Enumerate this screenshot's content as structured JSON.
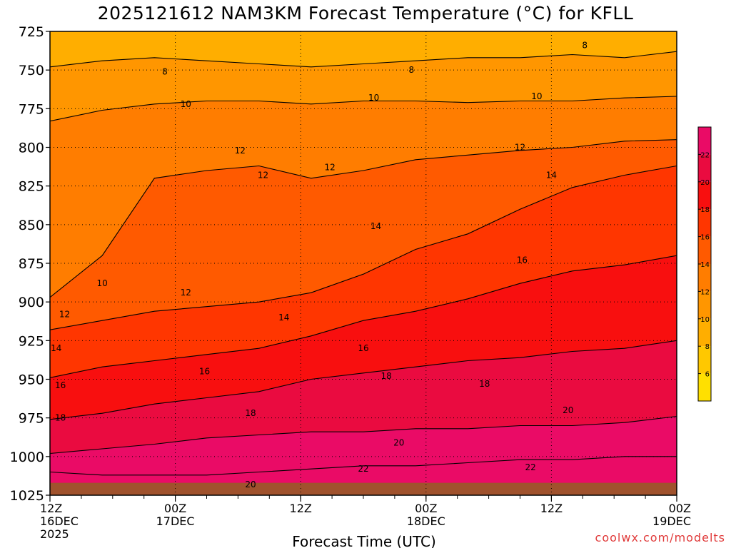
{
  "chart_data": {
    "type": "heatmap",
    "title": "2025121612 NAM3KM Forecast Temperature (°C) for KFLL",
    "xlabel": "Forecast Time (UTC)",
    "ylabel": "",
    "y_axis": {
      "ticks": [
        725,
        750,
        775,
        800,
        825,
        850,
        875,
        900,
        925,
        950,
        975,
        1000,
        1025
      ],
      "range": [
        725,
        1025
      ],
      "inverted": true,
      "gridlines": "dotted"
    },
    "x_axis": {
      "range_hours": [
        0,
        60
      ],
      "tick_labels": [
        {
          "hour": 0,
          "lines": [
            "12Z",
            "16DEC",
            "2025"
          ]
        },
        {
          "hour": 12,
          "lines": [
            "00Z",
            "17DEC"
          ]
        },
        {
          "hour": 24,
          "lines": [
            "12Z"
          ]
        },
        {
          "hour": 36,
          "lines": [
            "00Z",
            "18DEC"
          ]
        },
        {
          "hour": 48,
          "lines": [
            "12Z"
          ]
        },
        {
          "hour": 60,
          "lines": [
            "00Z",
            "19DEC"
          ]
        }
      ],
      "gridlines": "dotted"
    },
    "colorbar": {
      "levels": [
        4,
        6,
        8,
        10,
        12,
        14,
        16,
        18,
        20,
        22,
        24
      ],
      "labels": [
        "6",
        "8",
        "10",
        "12",
        "14",
        "16",
        "18",
        "20",
        "22"
      ],
      "colors": [
        "#ffe000",
        "#ffc800",
        "#ffae00",
        "#ff9600",
        "#ff7d00",
        "#ff5a00",
        "#ff3600",
        "#f80f0f",
        "#ea0b40",
        "#ea0b66"
      ]
    },
    "isotherms": [
      {
        "value": 8,
        "pressure": [
          748,
          744,
          742,
          744,
          746,
          748,
          746,
          744,
          742,
          742,
          740,
          742,
          738
        ]
      },
      {
        "value": 10,
        "pressure": [
          783,
          776,
          772,
          770,
          770,
          772,
          770,
          770,
          771,
          770,
          770,
          768,
          767
        ]
      },
      {
        "value": 12,
        "pressure": [
          897,
          870,
          820,
          815,
          812,
          820,
          815,
          808,
          805,
          802,
          800,
          796,
          795
        ]
      },
      {
        "value": 14,
        "pressure": [
          918,
          912,
          906,
          903,
          900,
          894,
          882,
          866,
          856,
          840,
          826,
          818,
          812
        ]
      },
      {
        "value": 16,
        "pressure": [
          949,
          942,
          938,
          934,
          930,
          922,
          912,
          906,
          898,
          888,
          880,
          876,
          870
        ]
      },
      {
        "value": 18,
        "pressure": [
          976,
          972,
          966,
          962,
          958,
          950,
          946,
          942,
          938,
          936,
          932,
          930,
          925
        ]
      },
      {
        "value": 20,
        "pressure": [
          998,
          995,
          992,
          988,
          986,
          984,
          984,
          982,
          982,
          980,
          980,
          978,
          974
        ]
      },
      {
        "value": 22,
        "pressure": [
          1010,
          1012,
          1012,
          1012,
          1010,
          1008,
          1006,
          1006,
          1004,
          1002,
          1002,
          1000,
          1000
        ]
      }
    ],
    "contour_labels": [
      {
        "text": "8",
        "hour": 11.0,
        "pressure": 751
      },
      {
        "text": "8",
        "hour": 34.6,
        "pressure": 750
      },
      {
        "text": "8",
        "hour": 51.2,
        "pressure": 734
      },
      {
        "text": "10",
        "hour": 13.0,
        "pressure": 772
      },
      {
        "text": "10",
        "hour": 31.0,
        "pressure": 768
      },
      {
        "text": "10",
        "hour": 46.6,
        "pressure": 767
      },
      {
        "text": "12",
        "hour": 18.2,
        "pressure": 802
      },
      {
        "text": "12",
        "hour": 20.4,
        "pressure": 818
      },
      {
        "text": "12",
        "hour": 26.8,
        "pressure": 813
      },
      {
        "text": "12",
        "hour": 45.0,
        "pressure": 800
      },
      {
        "text": "14",
        "hour": 48.0,
        "pressure": 818
      },
      {
        "text": "14",
        "hour": 31.2,
        "pressure": 851
      },
      {
        "text": "14",
        "hour": 22.4,
        "pressure": 910
      },
      {
        "text": "14",
        "hour": 0.6,
        "pressure": 930
      },
      {
        "text": "12",
        "hour": 13.0,
        "pressure": 894
      },
      {
        "text": "12",
        "hour": 1.4,
        "pressure": 908
      },
      {
        "text": "10",
        "hour": 5.0,
        "pressure": 888
      },
      {
        "text": "16",
        "hour": 45.2,
        "pressure": 873
      },
      {
        "text": "16",
        "hour": 30.0,
        "pressure": 930
      },
      {
        "text": "16",
        "hour": 14.8,
        "pressure": 945
      },
      {
        "text": "16",
        "hour": 1.0,
        "pressure": 954
      },
      {
        "text": "18",
        "hour": 32.2,
        "pressure": 948
      },
      {
        "text": "18",
        "hour": 41.6,
        "pressure": 953
      },
      {
        "text": "18",
        "hour": 19.2,
        "pressure": 972
      },
      {
        "text": "18",
        "hour": 1.0,
        "pressure": 975
      },
      {
        "text": "20",
        "hour": 49.6,
        "pressure": 970
      },
      {
        "text": "20",
        "hour": 33.4,
        "pressure": 991
      },
      {
        "text": "20",
        "hour": 19.2,
        "pressure": 1018
      },
      {
        "text": "22",
        "hour": 30.0,
        "pressure": 1008
      },
      {
        "text": "22",
        "hour": 46.0,
        "pressure": 1007
      }
    ],
    "surface_band": {
      "pressure": 1017,
      "color": "#a0522d"
    },
    "grid": true,
    "legend": "right"
  },
  "footer": {
    "credit": "coolwx.com/modelts"
  }
}
